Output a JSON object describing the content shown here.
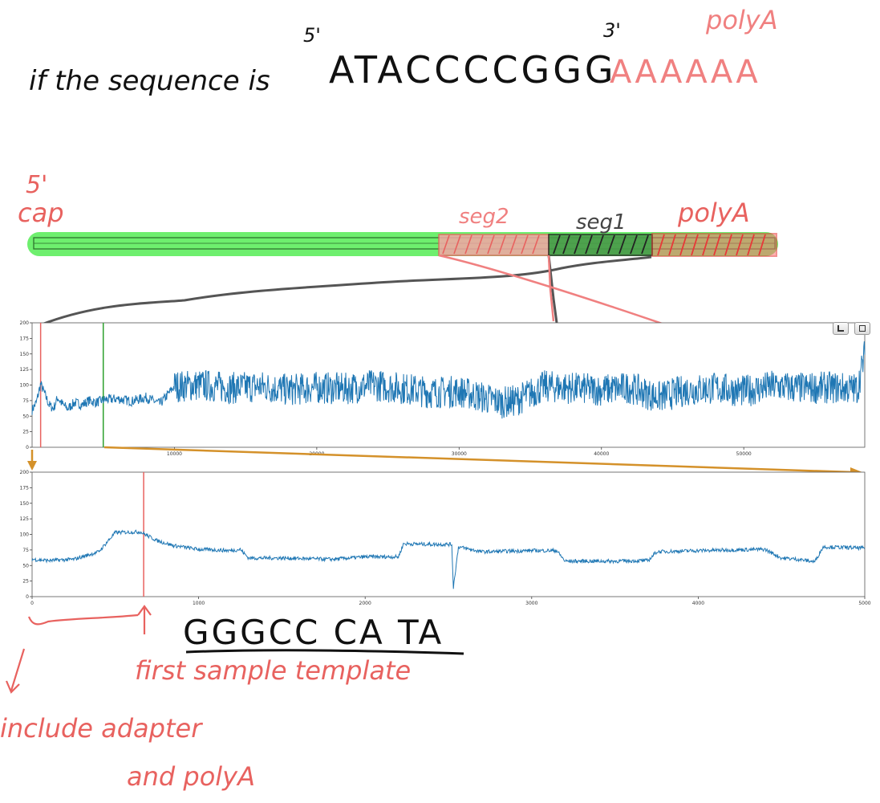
{
  "annotations": {
    "headline_prefix": "if the sequence is",
    "five_prime_top": "5'",
    "three_prime_top": "3'",
    "sequence": "ATACCCCGGG",
    "polya_label_top": "polyA",
    "polya_tail": "AAAAAA",
    "five_prime_cap_line1": "5'",
    "five_prime_cap_line2": "cap",
    "seg2_label": "seg2",
    "seg1_label": "seg1",
    "polya_label_bar": "polyA",
    "read_sequence": "GGGCC CA TA",
    "first_sample_label": "first sample template",
    "include_line1": "include adapter",
    "include_line2": "and polyA"
  },
  "colors": {
    "signal": "#1f77b4",
    "marker_red": "#e8625f",
    "marker_green": "#2ca02c",
    "bar_green": "#66ee66",
    "zoom_arrow": "#d4912a",
    "ink_black": "#111111",
    "ink_red": "#e8625f"
  },
  "toolbar": {
    "pan_icon": "bar-chart-icon",
    "save_icon": "save-icon"
  },
  "chart_data": [
    {
      "type": "line",
      "title": "",
      "xlabel": "",
      "ylabel": "",
      "xlim": [
        0,
        58500
      ],
      "ylim": [
        0,
        200
      ],
      "xticks": [
        10000,
        20000,
        30000,
        40000,
        50000
      ],
      "yticks": [
        0,
        25,
        50,
        75,
        100,
        125,
        150,
        175,
        200
      ],
      "markers": [
        {
          "x": 600,
          "color": "red"
        },
        {
          "x": 5000,
          "color": "green"
        }
      ],
      "series": [
        {
          "x": [
            0,
            300,
            600,
            900,
            1200,
            1500,
            1800,
            2100,
            2500,
            3000,
            3500,
            4000,
            4500,
            5000,
            6000,
            7000,
            8000,
            9000,
            10000,
            12000,
            14000,
            16000,
            18000,
            20000,
            22000,
            24000,
            26000,
            28000,
            30000,
            32000,
            33000,
            34000,
            36000,
            38000,
            40000,
            42000,
            44000,
            46000,
            48000,
            50000,
            52000,
            54000,
            56000,
            58000,
            58500
          ],
          "values": [
            60,
            72,
            102,
            85,
            68,
            62,
            80,
            70,
            62,
            72,
            68,
            75,
            72,
            76,
            78,
            74,
            80,
            70,
            98,
            100,
            95,
            98,
            92,
            96,
            94,
            100,
            95,
            88,
            90,
            78,
            72,
            75,
            98,
            95,
            92,
            96,
            80,
            92,
            95,
            90,
            98,
            95,
            96,
            94,
            150
          ]
        }
      ]
    },
    {
      "type": "line",
      "title": "",
      "xlabel": "",
      "ylabel": "",
      "xlim": [
        0,
        5000
      ],
      "ylim": [
        0,
        200
      ],
      "xticks": [
        0,
        1000,
        2000,
        3000,
        4000,
        5000
      ],
      "yticks": [
        0,
        25,
        50,
        75,
        100,
        125,
        150,
        175,
        200
      ],
      "markers": [
        {
          "x": 670,
          "color": "red"
        }
      ],
      "series": [
        {
          "x": [
            0,
            100,
            250,
            350,
            400,
            500,
            650,
            750,
            850,
            950,
            1000,
            1200,
            1250,
            1300,
            1500,
            1800,
            2000,
            2200,
            2230,
            2400,
            2520,
            2530,
            2560,
            2700,
            3000,
            3150,
            3200,
            3500,
            3700,
            3750,
            4000,
            4400,
            4500,
            4600,
            4650,
            4700,
            4750,
            5000
          ],
          "values": [
            60,
            58,
            60,
            68,
            72,
            103,
            104,
            90,
            82,
            78,
            76,
            74,
            76,
            62,
            62,
            60,
            64,
            64,
            85,
            84,
            84,
            15,
            80,
            72,
            74,
            74,
            57,
            57,
            58,
            72,
            74,
            76,
            62,
            60,
            58,
            56,
            80,
            78
          ]
        }
      ]
    }
  ]
}
